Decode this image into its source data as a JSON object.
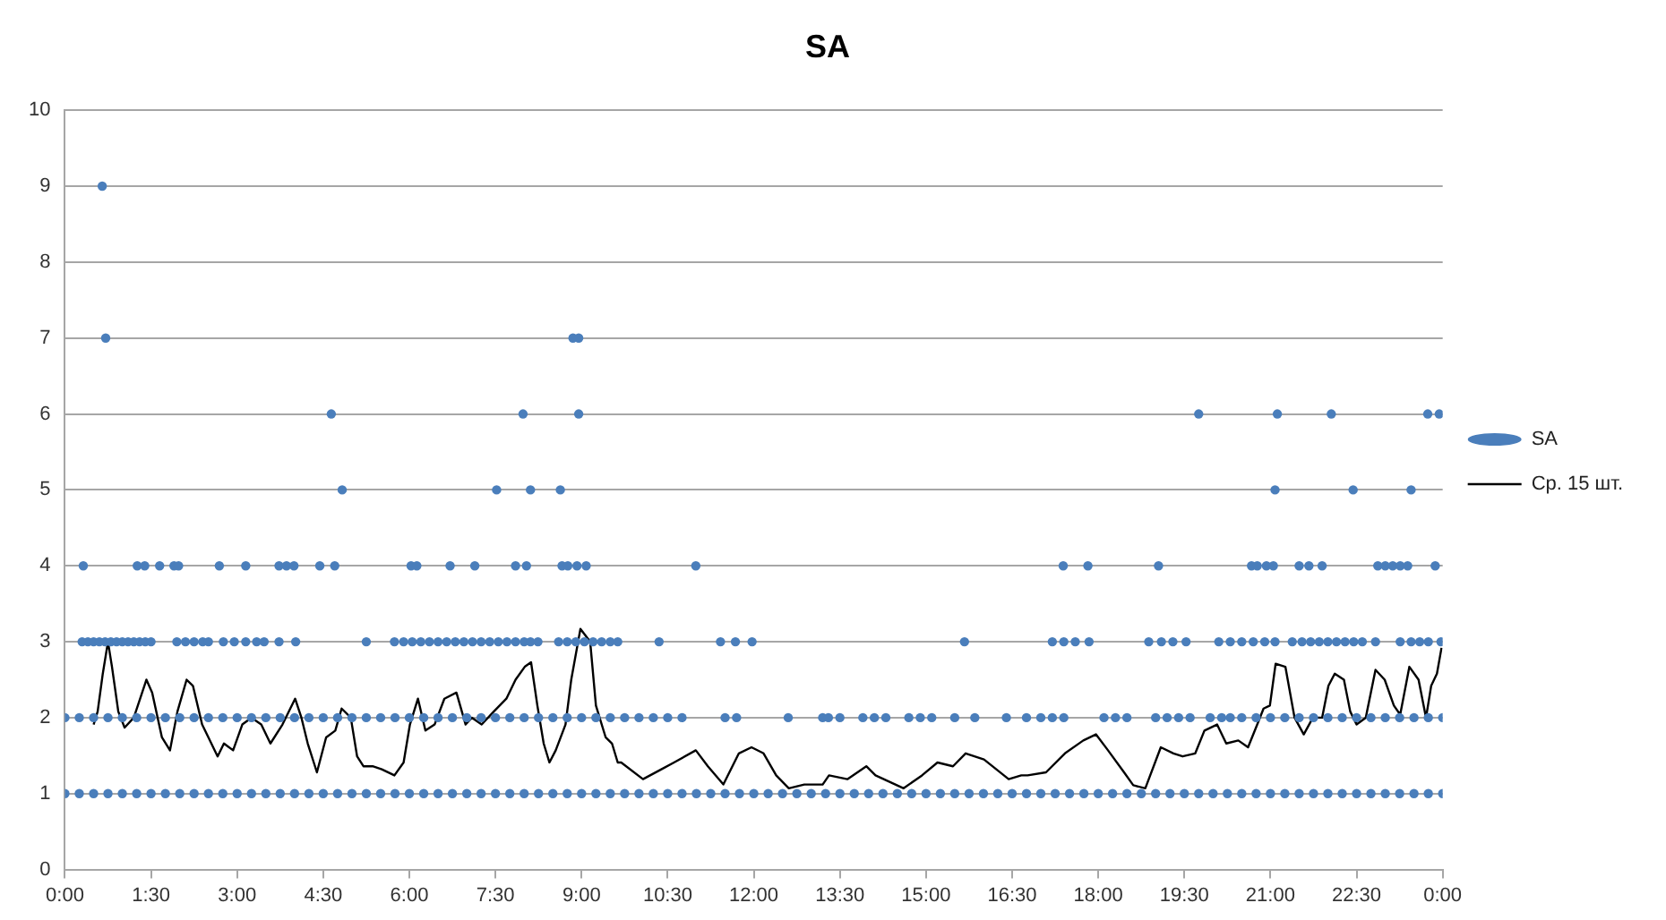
{
  "chart_data": {
    "type": "scatter",
    "title": "SA",
    "xlim": [
      0,
      24
    ],
    "xticks": [
      {
        "value": 0,
        "label": "0:00"
      },
      {
        "value": 1.5,
        "label": "1:30"
      },
      {
        "value": 3,
        "label": "3:00"
      },
      {
        "value": 4.5,
        "label": "4:30"
      },
      {
        "value": 6,
        "label": "6:00"
      },
      {
        "value": 7.5,
        "label": "7:30"
      },
      {
        "value": 9,
        "label": "9:00"
      },
      {
        "value": 10.5,
        "label": "10:30"
      },
      {
        "value": 12,
        "label": "12:00"
      },
      {
        "value": 13.5,
        "label": "13:30"
      },
      {
        "value": 15,
        "label": "15:00"
      },
      {
        "value": 16.5,
        "label": "16:30"
      },
      {
        "value": 18,
        "label": "18:00"
      },
      {
        "value": 19.5,
        "label": "19:30"
      },
      {
        "value": 21,
        "label": "21:00"
      },
      {
        "value": 22.5,
        "label": "22:30"
      },
      {
        "value": 24,
        "label": "0:00"
      }
    ],
    "ylim": [
      0,
      10
    ],
    "yticks": [
      0,
      1,
      2,
      3,
      4,
      5,
      6,
      7,
      8,
      9,
      10
    ],
    "grid": "y",
    "legend": "right",
    "series": [
      {
        "name": "SA",
        "type": "scatter",
        "marker": "circle",
        "color": "#4a7ebb",
        "x": [
          0,
          0.25,
          0.5,
          0.75,
          1,
          1.25,
          1.5,
          1.75,
          2,
          2.25,
          2.5,
          2.75,
          3,
          3.25,
          3.5,
          3.75,
          4,
          4.25,
          4.5,
          4.75,
          5,
          5.25,
          5.5,
          5.75,
          6,
          6.25,
          6.5,
          6.75,
          7,
          7.25,
          7.5,
          7.75,
          8,
          8.25,
          8.5,
          8.75,
          9,
          9.25,
          9.5,
          9.75,
          10,
          10.25,
          10.5,
          10.75,
          11,
          11.25,
          11.5,
          11.75,
          12,
          12.25,
          12.5,
          12.75,
          13,
          13.25,
          13.5,
          13.75,
          14,
          14.25,
          14.5,
          14.75,
          15,
          15.25,
          15.5,
          15.75,
          16,
          16.25,
          16.5,
          16.75,
          17,
          17.25,
          17.5,
          17.75,
          18,
          18.25,
          18.5,
          18.75,
          19,
          19.25,
          19.5,
          19.75,
          20,
          20.25,
          20.5,
          20.75,
          21,
          21.25,
          21.5,
          21.75,
          22,
          22.25,
          22.5,
          22.75,
          23,
          23.25,
          23.5,
          23.75,
          24,
          0,
          0.25,
          0.5,
          0.75,
          1,
          1.25,
          1.5,
          1.75,
          2,
          2.25,
          2.5,
          2.75,
          3,
          3.25,
          3.5,
          3.75,
          4,
          4.25,
          4.5,
          4.75,
          5,
          5.25,
          5.5,
          5.75,
          6,
          6.25,
          6.5,
          6.75,
          7,
          7.25,
          7.5,
          7.75,
          8,
          8.25,
          8.5,
          8.75,
          9,
          9.25,
          9.5,
          9.75,
          10,
          10.25,
          10.5,
          10.75,
          11.5,
          11.7,
          12.6,
          13.2,
          13.3,
          13.5,
          13.9,
          14.1,
          14.3,
          14.7,
          14.9,
          15.1,
          15.5,
          15.85,
          16.4,
          16.75,
          17,
          17.2,
          17.4,
          18.1,
          18.3,
          18.5,
          19,
          19.2,
          19.4,
          19.6,
          19.95,
          20.15,
          20.3,
          20.5,
          20.75,
          21,
          21.25,
          21.5,
          21.75,
          22,
          22.25,
          22.5,
          22.75,
          23,
          23.25,
          23.5,
          23.75,
          24,
          0.3,
          0.4,
          0.5,
          0.6,
          0.7,
          0.8,
          0.9,
          1,
          1.1,
          1.2,
          1.3,
          1.4,
          1.5,
          1.95,
          2.1,
          2.25,
          2.4,
          2.5,
          2.76,
          2.95,
          3.15,
          3.34,
          3.47,
          3.73,
          4.02,
          5.25,
          5.74,
          5.9,
          6.05,
          6.2,
          6.35,
          6.5,
          6.65,
          6.8,
          6.95,
          7.1,
          7.25,
          7.4,
          7.55,
          7.7,
          7.85,
          8,
          8.11,
          8.24,
          8.6,
          8.75,
          8.9,
          9.05,
          9.2,
          9.35,
          9.5,
          9.63,
          10.35,
          11.42,
          11.68,
          11.97,
          15.67,
          17.2,
          17.4,
          17.6,
          17.84,
          18.88,
          19.1,
          19.3,
          19.53,
          20.1,
          20.3,
          20.5,
          20.7,
          20.9,
          21.08,
          21.38,
          21.55,
          21.7,
          21.85,
          22,
          22.15,
          22.3,
          22.45,
          22.6,
          22.83,
          23.26,
          23.45,
          23.6,
          23.75,
          23.97,
          0.32,
          1.26,
          1.39,
          1.65,
          1.9,
          1.98,
          2.69,
          3.15,
          3.73,
          3.86,
          3.99,
          4.44,
          4.7,
          6.03,
          6.13,
          6.71,
          7.14,
          7.85,
          8.04,
          8.66,
          8.76,
          8.92,
          9.08,
          10.99,
          17.39,
          17.82,
          19.05,
          20.67,
          20.77,
          20.93,
          21.05,
          21.5,
          21.67,
          21.9,
          22.87,
          23,
          23.13,
          23.26,
          23.39,
          23.87,
          4.83,
          7.52,
          8.11,
          8.63,
          21.08,
          22.44,
          23.45,
          4.64,
          7.98,
          8.95,
          19.75,
          21.12,
          22.06,
          23.74,
          23.94,
          0.71,
          8.85,
          8.95,
          0.65
        ],
        "values": [
          1,
          1,
          1,
          1,
          1,
          1,
          1,
          1,
          1,
          1,
          1,
          1,
          1,
          1,
          1,
          1,
          1,
          1,
          1,
          1,
          1,
          1,
          1,
          1,
          1,
          1,
          1,
          1,
          1,
          1,
          1,
          1,
          1,
          1,
          1,
          1,
          1,
          1,
          1,
          1,
          1,
          1,
          1,
          1,
          1,
          1,
          1,
          1,
          1,
          1,
          1,
          1,
          1,
          1,
          1,
          1,
          1,
          1,
          1,
          1,
          1,
          1,
          1,
          1,
          1,
          1,
          1,
          1,
          1,
          1,
          1,
          1,
          1,
          1,
          1,
          1,
          1,
          1,
          1,
          1,
          1,
          1,
          1,
          1,
          1,
          1,
          1,
          1,
          1,
          1,
          1,
          1,
          1,
          1,
          1,
          1,
          1,
          2,
          2,
          2,
          2,
          2,
          2,
          2,
          2,
          2,
          2,
          2,
          2,
          2,
          2,
          2,
          2,
          2,
          2,
          2,
          2,
          2,
          2,
          2,
          2,
          2,
          2,
          2,
          2,
          2,
          2,
          2,
          2,
          2,
          2,
          2,
          2,
          2,
          2,
          2,
          2,
          2,
          2,
          2,
          2,
          2,
          2,
          2,
          2,
          2,
          2,
          2,
          2,
          2,
          2,
          2,
          2,
          2,
          2,
          2,
          2,
          2,
          2,
          2,
          2,
          2,
          2,
          2,
          2,
          2,
          2,
          2,
          2,
          2,
          2,
          2,
          2,
          2,
          2,
          2,
          2,
          2,
          2,
          2,
          2,
          2,
          2,
          2,
          2,
          3,
          3,
          3,
          3,
          3,
          3,
          3,
          3,
          3,
          3,
          3,
          3,
          3,
          3,
          3,
          3,
          3,
          3,
          3,
          3,
          3,
          3,
          3,
          3,
          3,
          3,
          3,
          3,
          3,
          3,
          3,
          3,
          3,
          3,
          3,
          3,
          3,
          3,
          3,
          3,
          3,
          3,
          3,
          3,
          3,
          3,
          3,
          3,
          3,
          3,
          3,
          3,
          3,
          3,
          3,
          3,
          3,
          3,
          3,
          3,
          3,
          3,
          3,
          3,
          3,
          3,
          3,
          3,
          3,
          3,
          3,
          3,
          3,
          3,
          3,
          3,
          3,
          3,
          3,
          3,
          3,
          3,
          3,
          3,
          3,
          3,
          4,
          4,
          4,
          4,
          4,
          4,
          4,
          4,
          4,
          4,
          4,
          4,
          4,
          4,
          4,
          4,
          4,
          4,
          4,
          4,
          4,
          4,
          4,
          4,
          4,
          4,
          4,
          4,
          4,
          4,
          4,
          4,
          4,
          4,
          4,
          4,
          4,
          4,
          4,
          4,
          5,
          5,
          5,
          5,
          5,
          5,
          5,
          6,
          6,
          6,
          6,
          6,
          6,
          6,
          6,
          7,
          7,
          7,
          9
        ]
      },
      {
        "name": "Ср. 15 шт.",
        "type": "line",
        "marker": "none",
        "line_style": "solid",
        "color": "#000000",
        "x": [
          0.5,
          0.57,
          0.66,
          0.75,
          0.82,
          0.93,
          1.04,
          1.2,
          1.42,
          1.52,
          1.69,
          1.83,
          1.96,
          2.12,
          2.23,
          2.39,
          2.5,
          2.66,
          2.77,
          2.93,
          3.09,
          3.25,
          3.42,
          3.58,
          3.79,
          4.01,
          4.12,
          4.23,
          4.39,
          4.55,
          4.71,
          4.82,
          4.98,
          5.09,
          5.2,
          5.36,
          5.52,
          5.74,
          5.9,
          6.01,
          6.15,
          6.28,
          6.44,
          6.61,
          6.82,
          6.98,
          7.09,
          7.26,
          7.47,
          7.69,
          7.85,
          8.01,
          8.12,
          8.23,
          8.34,
          8.44,
          8.55,
          8.72,
          8.82,
          8.98,
          9.15,
          9.25,
          9.42,
          9.53,
          9.63,
          9.69,
          10.07,
          10.39,
          10.61,
          10.99,
          11.2,
          11.47,
          11.74,
          11.96,
          12.17,
          12.39,
          12.61,
          12.88,
          13.2,
          13.31,
          13.63,
          13.96,
          14.12,
          14.61,
          14.93,
          15.2,
          15.47,
          15.69,
          16.01,
          16.44,
          16.66,
          16.77,
          17.09,
          17.42,
          17.74,
          17.96,
          18.17,
          18.45,
          18.61,
          18.82,
          19.09,
          19.31,
          19.47,
          19.69,
          19.85,
          20.07,
          20.23,
          20.44,
          20.61,
          20.77,
          20.88,
          20.99,
          21.09,
          21.26,
          21.42,
          21.58,
          21.74,
          21.9,
          22.01,
          22.12,
          22.28,
          22.39,
          22.5,
          22.66,
          22.83,
          22.99,
          23.15,
          23.26,
          23.42,
          23.58,
          23.71,
          23.8,
          23.9,
          23.98
        ],
        "values": [
          1.91,
          2.08,
          2.58,
          3.0,
          2.67,
          2.08,
          1.87,
          2.0,
          2.5,
          2.33,
          1.74,
          1.57,
          2.08,
          2.5,
          2.42,
          1.91,
          1.74,
          1.49,
          1.66,
          1.57,
          1.91,
          2.0,
          1.91,
          1.66,
          1.91,
          2.25,
          2.0,
          1.66,
          1.28,
          1.74,
          1.83,
          2.12,
          2.0,
          1.49,
          1.36,
          1.36,
          1.32,
          1.24,
          1.41,
          1.91,
          2.25,
          1.83,
          1.91,
          2.25,
          2.33,
          1.91,
          2.0,
          1.91,
          2.08,
          2.25,
          2.5,
          2.67,
          2.73,
          2.16,
          1.66,
          1.41,
          1.57,
          1.91,
          2.5,
          3.17,
          3.0,
          2.16,
          1.74,
          1.66,
          1.41,
          1.41,
          1.19,
          1.32,
          1.41,
          1.57,
          1.36,
          1.12,
          1.53,
          1.61,
          1.53,
          1.24,
          1.07,
          1.12,
          1.12,
          1.24,
          1.19,
          1.36,
          1.24,
          1.07,
          1.24,
          1.41,
          1.36,
          1.53,
          1.45,
          1.19,
          1.24,
          1.24,
          1.28,
          1.53,
          1.7,
          1.78,
          1.57,
          1.28,
          1.11,
          1.07,
          1.61,
          1.53,
          1.49,
          1.53,
          1.83,
          1.91,
          1.66,
          1.7,
          1.61,
          1.91,
          2.12,
          2.16,
          2.71,
          2.67,
          2.0,
          1.78,
          2.0,
          2.0,
          2.42,
          2.58,
          2.5,
          2.08,
          1.91,
          2.0,
          2.63,
          2.5,
          2.16,
          2.04,
          2.67,
          2.5,
          2.0,
          2.42,
          2.58,
          2.92
        ]
      }
    ]
  }
}
